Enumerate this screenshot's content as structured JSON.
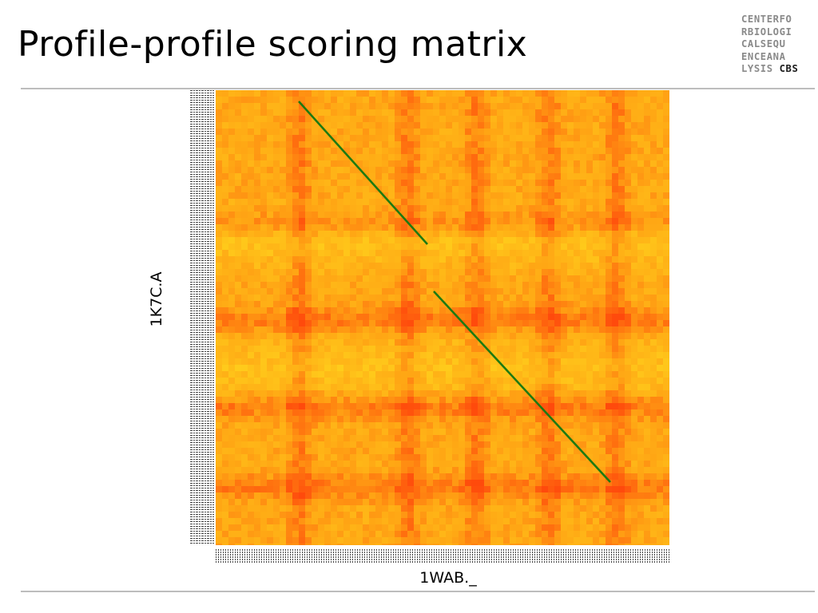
{
  "slide": {
    "title": "Profile-profile scoring matrix"
  },
  "logo": {
    "lines": [
      "CENTERFO",
      "RBIOLOGI",
      "CALSEQU",
      "ENCEANA",
      "LYSIS"
    ],
    "accent": "CBS"
  },
  "matrix": {
    "x_label": "1WAB._",
    "y_label": "1K7C.A",
    "colors": {
      "low": "#ffd21c",
      "mid": "#ffa514",
      "high": "#ff4a0c",
      "alignment_path": "#1e7a12"
    }
  }
}
